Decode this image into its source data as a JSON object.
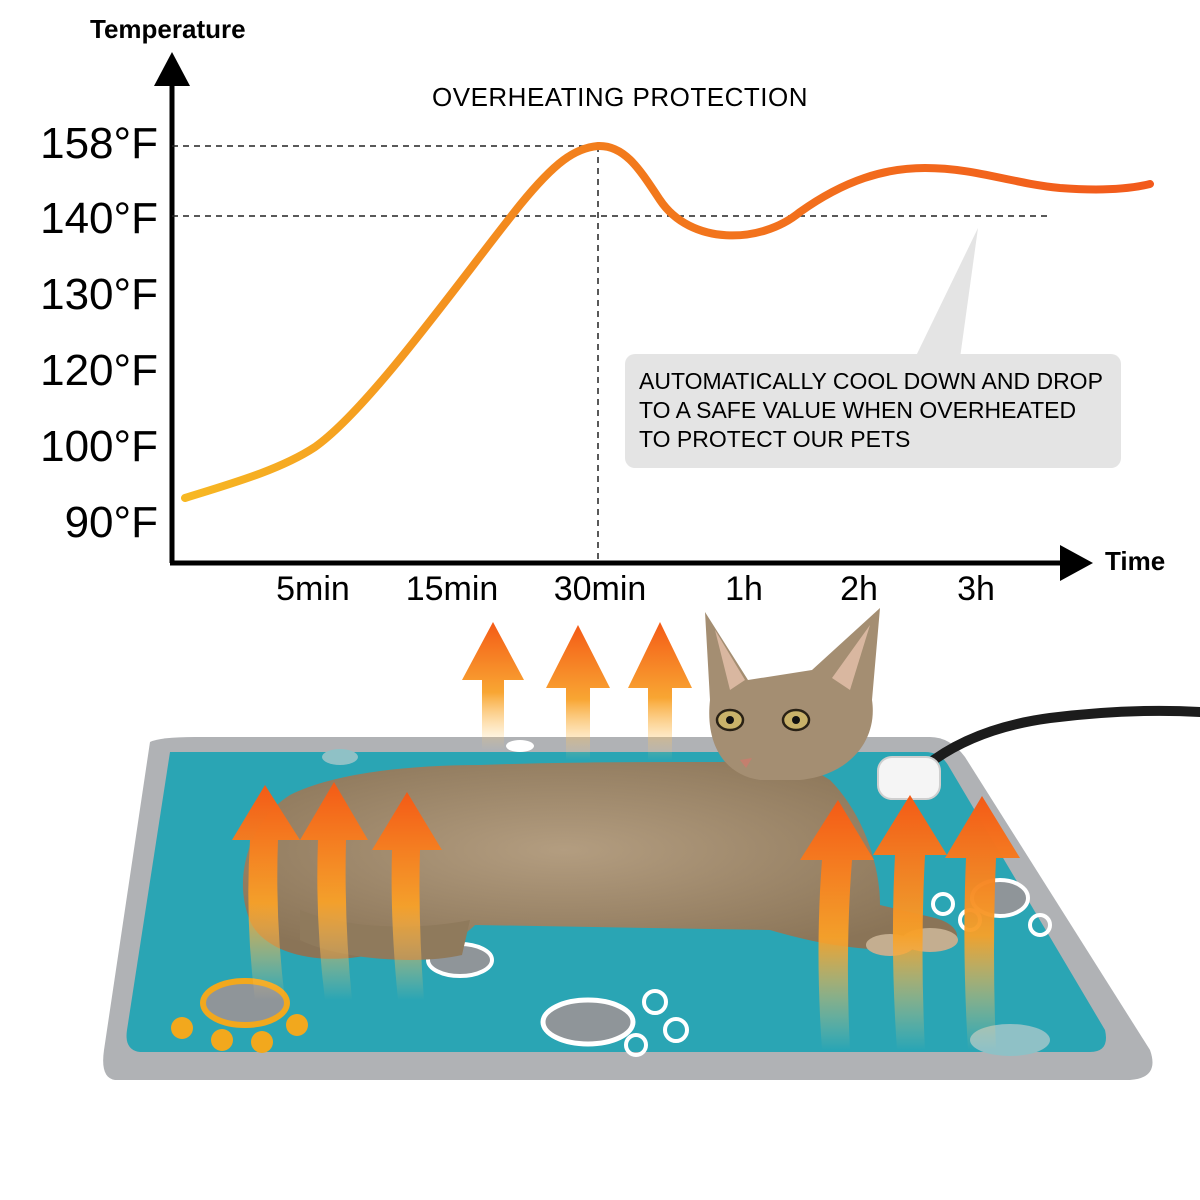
{
  "colors": {
    "curve_start": "#f7b823",
    "curve_end": "#f25a1c",
    "arrow_tip": "#f45a16",
    "arrow_mid": "#f8a128",
    "mat_fill": "#2aa5b4",
    "mat_border": "#a7a9ac",
    "callout_bg": "#e4e4e4",
    "axis": "#000000",
    "cat": "#a08a6d"
  },
  "icons": {
    "heat_arrow": "heat-arrow-icon",
    "paw": "paw-print-icon",
    "cat": "cat-image",
    "controller": "controller-icon"
  },
  "chart_data": {
    "type": "line",
    "title": "OVERHEATING PROTECTION",
    "ylabel": "Temperature",
    "xlabel": "Time",
    "yticks": [
      "158°F",
      "140°F",
      "130°F",
      "120°F",
      "100°F",
      "90°F"
    ],
    "xticks": [
      "5min",
      "15min",
      "30min",
      "1h",
      "2h",
      "3h"
    ],
    "scale": "ordinal ticks, non-linear",
    "grid": false,
    "series": [
      {
        "x": [
          "0",
          "5min",
          "15min",
          "30min",
          "1h",
          "2h",
          "3h",
          "end"
        ],
        "y": [
          90,
          100,
          135,
          158,
          135,
          148,
          143,
          143
        ]
      }
    ],
    "reference_lines": {
      "peak_temperature": "158°F",
      "safe_temperature": "140°F",
      "peak_time": "30min"
    },
    "annotation": {
      "lines": [
        "AUTOMATICALLY COOL DOWN AND DROP",
        "TO A SAFE VALUE WHEN  OVERHEATED",
        "TO PROTECT OUR PETS"
      ]
    }
  }
}
